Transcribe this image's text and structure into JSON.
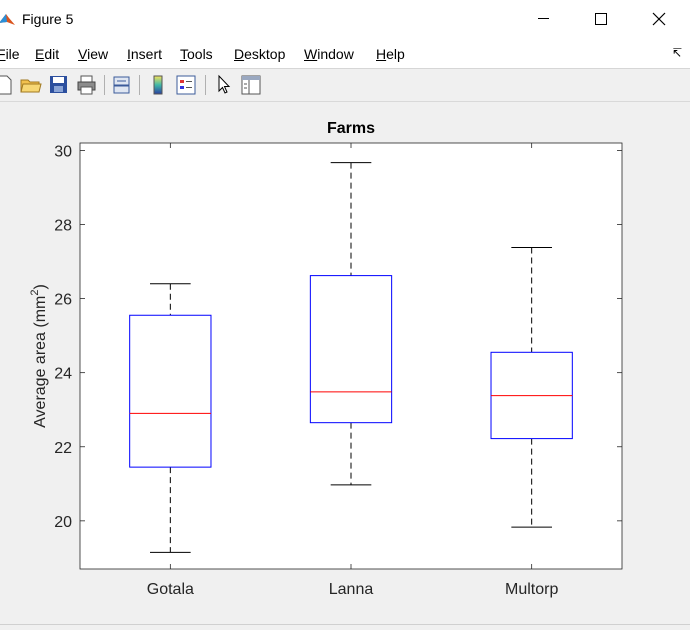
{
  "window": {
    "title": "Figure 5"
  },
  "menu": {
    "items": [
      {
        "label": "File"
      },
      {
        "label": "Edit"
      },
      {
        "label": "View"
      },
      {
        "label": "Insert"
      },
      {
        "label": "Tools"
      },
      {
        "label": "Desktop"
      },
      {
        "label": "Window"
      },
      {
        "label": "Help"
      }
    ]
  },
  "chart_data": {
    "type": "boxplot",
    "title": "Farms",
    "ylabel": "Average area (mm",
    "ylabel_sup": "2",
    "ylabel_close": ")",
    "ylim": [
      18.7,
      30.2
    ],
    "yticks": [
      "20",
      "22",
      "24",
      "26",
      "28",
      "30"
    ],
    "categories": [
      "Gotala",
      "Lanna",
      "Multorp"
    ],
    "boxes": [
      {
        "name": "Gotala",
        "whisker_low": 19.15,
        "q1": 21.45,
        "median": 22.9,
        "q3": 25.55,
        "whisker_high": 26.4
      },
      {
        "name": "Lanna",
        "whisker_low": 20.97,
        "q1": 22.65,
        "median": 23.48,
        "q3": 26.62,
        "whisker_high": 29.67
      },
      {
        "name": "Multorp",
        "whisker_low": 19.83,
        "q1": 22.22,
        "median": 23.38,
        "q3": 24.55,
        "whisker_high": 27.38
      }
    ],
    "colors": {
      "box": "#0000ff",
      "median": "#ff0000",
      "whisker": "#000000"
    }
  }
}
